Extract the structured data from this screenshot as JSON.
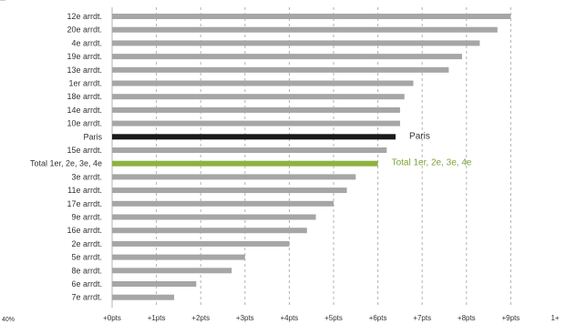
{
  "chart_data": {
    "type": "bar",
    "orientation": "horizontal",
    "categories": [
      "12e arrdt.",
      "20e arrdt.",
      "4e arrdt.",
      "19e arrdt.",
      "13e arrdt.",
      "1er arrdt.",
      "18e arrdt.",
      "14e arrdt.",
      "10e arrdt.",
      "Paris",
      "15e arrdt.",
      "Total 1er, 2e, 3e, 4e",
      "3e arrdt.",
      "11e arrdt.",
      "17e arrdt.",
      "9e arrdt.",
      "16e arrdt.",
      "2e arrdt.",
      "5e arrdt.",
      "8e arrdt.",
      "6e arrdt.",
      "7e arrdt."
    ],
    "values": [
      9.0,
      8.7,
      8.3,
      7.9,
      7.6,
      6.8,
      6.6,
      6.5,
      6.5,
      6.4,
      6.2,
      6.0,
      5.5,
      5.3,
      5.0,
      4.6,
      4.4,
      4.0,
      3.0,
      2.7,
      1.9,
      1.4
    ],
    "colors": {
      "default": "#a6a6a6",
      "Paris": "#1a1a1a",
      "Total 1er, 2e, 3e, 4e": "#8db33f"
    },
    "annotations": [
      {
        "category": "Paris",
        "text": "Paris",
        "color": "#333333"
      },
      {
        "category": "Total 1er, 2e, 3e, 4e",
        "text": "Total 1er, 2e, 3e, 4e",
        "color": "#7aa33a"
      }
    ],
    "xaxis": {
      "ticks": [
        0,
        1,
        2,
        3,
        4,
        5,
        6,
        7,
        8,
        9,
        10
      ],
      "tick_labels": [
        "+0pts",
        "+1pts",
        "+2pts",
        "+3pts",
        "+4pts",
        "+5pts",
        "+6pts",
        "+7pts",
        "+8pts",
        "+9pts",
        "1+"
      ]
    },
    "xlim": [
      0,
      10
    ],
    "corner_label": "40%",
    "grid": "vertical-dashed",
    "xlabel": "",
    "ylabel": "",
    "title": ""
  }
}
